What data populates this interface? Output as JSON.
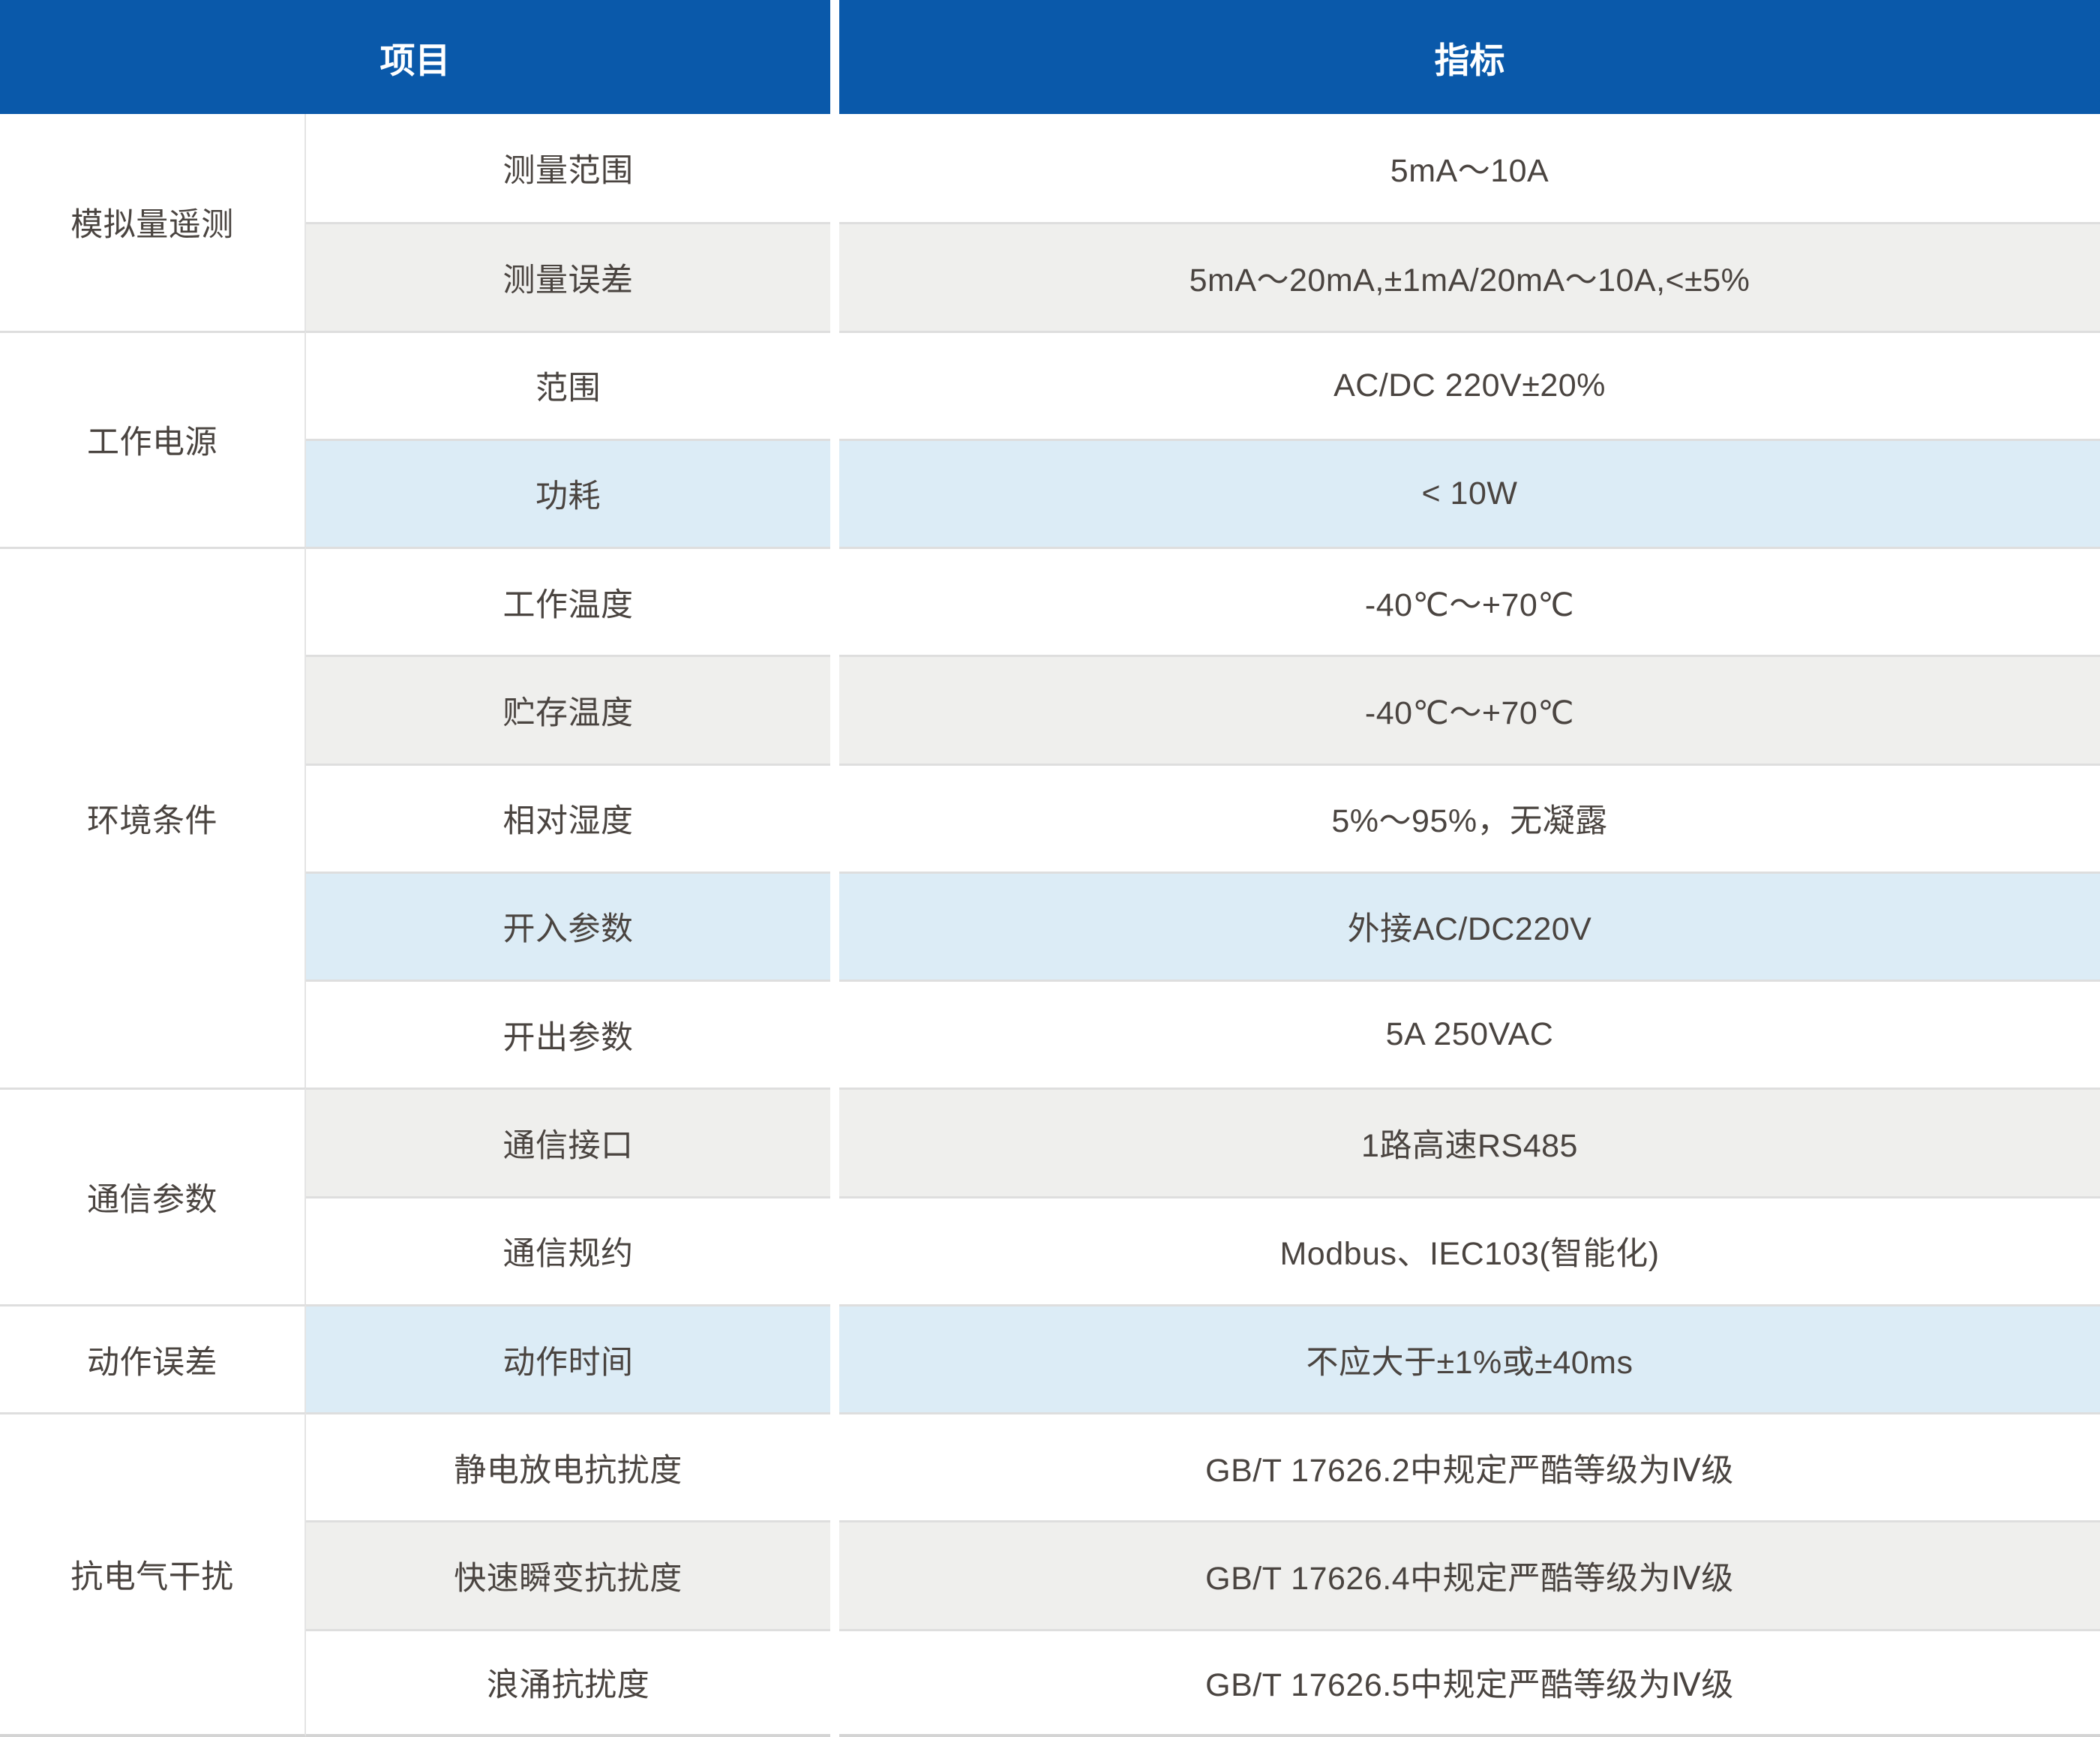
{
  "colors": {
    "header_bg": "#0a59aa",
    "header_text": "#ffffff",
    "text_color": "#4a4440",
    "gray_row": "#efefed",
    "blue_row": "#dcecf6",
    "row_line": "#dedede",
    "thin_line": "#e4e4e4",
    "bottom_line": "#d4d4d4"
  },
  "header": {
    "item_col": "项目",
    "spec_col": "指标"
  },
  "groups": [
    {
      "name": "模拟量遥测",
      "rows": [
        {
          "label": "测量范围",
          "value": "5mA～10A",
          "bg": "white"
        },
        {
          "label": "测量误差",
          "value": "5mA～20mA,±1mA/20mA～10A,<±5%",
          "bg": "gray"
        }
      ]
    },
    {
      "name": "工作电源",
      "rows": [
        {
          "label": "范围",
          "value": "AC/DC 220V±20%",
          "bg": "white"
        },
        {
          "label": "功耗",
          "value": "< 10W",
          "bg": "blue"
        }
      ]
    },
    {
      "name": "环境条件",
      "rows": [
        {
          "label": "工作温度",
          "value": "-40℃～+70℃",
          "bg": "white"
        },
        {
          "label": "贮存温度",
          "value": "-40℃～+70℃",
          "bg": "gray"
        },
        {
          "label": "相对湿度",
          "value": "5%～95%，无凝露",
          "bg": "white"
        },
        {
          "label": "开入参数",
          "value": "外接AC/DC220V",
          "bg": "blue"
        },
        {
          "label": "开出参数",
          "value": "5A 250VAC",
          "bg": "white"
        }
      ]
    },
    {
      "name": "通信参数",
      "rows": [
        {
          "label": "通信接口",
          "value": "1路高速RS485",
          "bg": "gray"
        },
        {
          "label": "通信规约",
          "value": "Modbus、IEC103(智能化)",
          "bg": "white"
        }
      ]
    },
    {
      "name": "动作误差",
      "rows": [
        {
          "label": "动作时间",
          "value": "不应大于±1%或±40ms",
          "bg": "blue"
        }
      ]
    },
    {
      "name": "抗电气干扰",
      "rows": [
        {
          "label": "静电放电抗扰度",
          "value": "GB/T 17626.2中规定严酷等级为Ⅳ级",
          "bg": "white"
        },
        {
          "label": "快速瞬变抗扰度",
          "value": "GB/T 17626.4中规定严酷等级为Ⅳ级",
          "bg": "gray"
        },
        {
          "label": "浪涌抗扰度",
          "value": "GB/T 17626.5中规定严酷等级为Ⅳ级",
          "bg": "white"
        }
      ]
    }
  ]
}
